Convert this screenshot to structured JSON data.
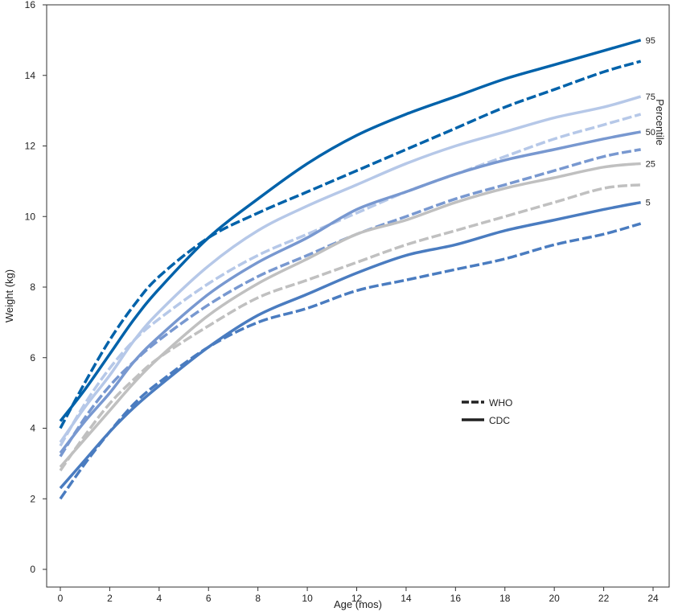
{
  "chart_data": {
    "type": "line",
    "title": "",
    "xlabel": "Age (mos)",
    "ylabel": "Weight (kg)",
    "xlim": [
      0,
      24
    ],
    "ylim": [
      0,
      16
    ],
    "xticks": [
      "0",
      "2",
      "4",
      "6",
      "8",
      "10",
      "12",
      "14",
      "16",
      "18",
      "20",
      "22",
      "24"
    ],
    "yticks": [
      "0",
      "2",
      "4",
      "6",
      "8",
      "10",
      "12",
      "14",
      "16"
    ],
    "grid": false,
    "legend": {
      "position": "center-right",
      "entries": [
        {
          "label": "WHO",
          "style": "dashed"
        },
        {
          "label": "CDC",
          "style": "solid"
        }
      ]
    },
    "percentile_title": "Percentile",
    "x": [
      0,
      1,
      2,
      3,
      4,
      6,
      8,
      10,
      12,
      14,
      16,
      18,
      20,
      22,
      23.5
    ],
    "series": [
      {
        "name": "CDC 95",
        "source": "CDC",
        "percentile": "95",
        "label": "95",
        "color": "#0062aa",
        "dashed": false,
        "values": [
          4.2,
          5.1,
          6.1,
          7.1,
          7.95,
          9.4,
          10.5,
          11.5,
          12.3,
          12.9,
          13.4,
          13.9,
          14.3,
          14.7,
          15.0
        ]
      },
      {
        "name": "WHO 95",
        "source": "WHO",
        "percentile": "95",
        "label": "",
        "color": "#0062aa",
        "dashed": true,
        "values": [
          4.0,
          5.3,
          6.5,
          7.5,
          8.3,
          9.4,
          10.1,
          10.7,
          11.3,
          11.9,
          12.5,
          13.1,
          13.6,
          14.1,
          14.4
        ]
      },
      {
        "name": "CDC 75",
        "source": "CDC",
        "percentile": "75",
        "label": "75",
        "color": "#b6c8e8",
        "dashed": false,
        "values": [
          3.6,
          4.6,
          5.5,
          6.5,
          7.3,
          8.6,
          9.6,
          10.3,
          10.9,
          11.5,
          12.0,
          12.4,
          12.8,
          13.1,
          13.4
        ]
      },
      {
        "name": "WHO 75",
        "source": "WHO",
        "percentile": "75",
        "label": "",
        "color": "#b6c8e8",
        "dashed": true,
        "values": [
          3.5,
          4.7,
          5.7,
          6.5,
          7.1,
          8.1,
          8.9,
          9.5,
          10.1,
          10.7,
          11.2,
          11.7,
          12.2,
          12.6,
          12.9
        ]
      },
      {
        "name": "CDC 50",
        "source": "CDC",
        "percentile": "50",
        "label": "50",
        "color": "#7898d0",
        "dashed": false,
        "values": [
          3.3,
          4.2,
          5.0,
          5.9,
          6.6,
          7.8,
          8.7,
          9.4,
          10.2,
          10.7,
          11.2,
          11.6,
          11.9,
          12.2,
          12.4
        ]
      },
      {
        "name": "WHO 50",
        "source": "WHO",
        "percentile": "50",
        "label": "",
        "color": "#7898d0",
        "dashed": true,
        "values": [
          3.2,
          4.3,
          5.2,
          5.9,
          6.5,
          7.5,
          8.3,
          8.9,
          9.5,
          10.0,
          10.5,
          10.9,
          11.3,
          11.7,
          11.9
        ]
      },
      {
        "name": "CDC 25",
        "source": "CDC",
        "percentile": "25",
        "label": "25",
        "color": "#c0c0c0",
        "dashed": false,
        "values": [
          2.9,
          3.7,
          4.5,
          5.3,
          6.0,
          7.2,
          8.1,
          8.8,
          9.5,
          9.9,
          10.4,
          10.8,
          11.1,
          11.4,
          11.5
        ]
      },
      {
        "name": "WHO 25",
        "source": "WHO",
        "percentile": "25",
        "label": "",
        "color": "#c0c0c0",
        "dashed": true,
        "values": [
          2.8,
          3.8,
          4.7,
          5.4,
          6.0,
          6.9,
          7.7,
          8.2,
          8.7,
          9.2,
          9.6,
          10.0,
          10.4,
          10.8,
          10.9
        ]
      },
      {
        "name": "CDC 5",
        "source": "CDC",
        "percentile": "5",
        "label": "5",
        "color": "#4a7cc0",
        "dashed": false,
        "values": [
          2.3,
          3.1,
          3.9,
          4.6,
          5.2,
          6.3,
          7.2,
          7.8,
          8.4,
          8.9,
          9.2,
          9.6,
          9.9,
          10.2,
          10.4
        ]
      },
      {
        "name": "WHO 5",
        "source": "WHO",
        "percentile": "5",
        "label": "",
        "color": "#4a7cc0",
        "dashed": true,
        "values": [
          2.0,
          3.0,
          3.9,
          4.7,
          5.3,
          6.3,
          7.0,
          7.4,
          7.9,
          8.2,
          8.5,
          8.8,
          9.2,
          9.5,
          9.8
        ]
      }
    ]
  }
}
